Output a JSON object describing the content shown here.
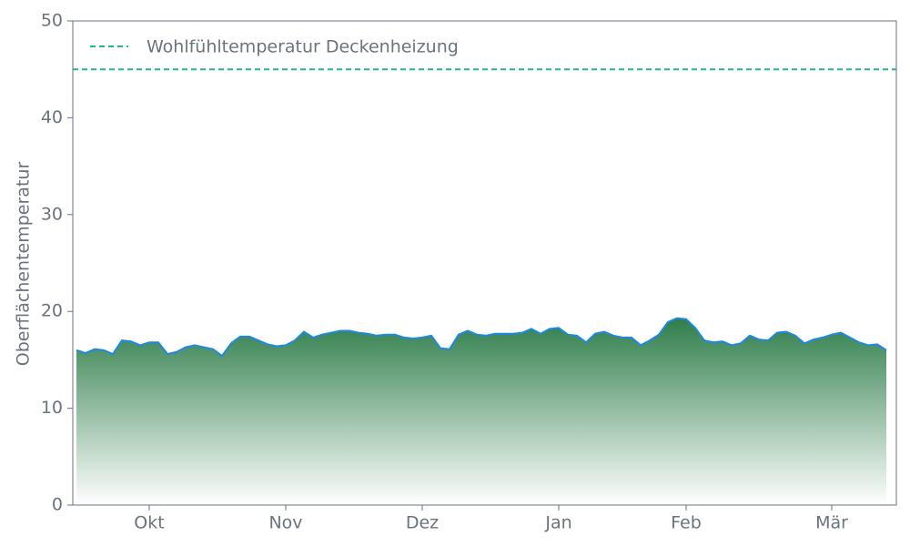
{
  "chart_data": {
    "type": "area",
    "y_label": "Oberflächentemperatur",
    "categories": [
      null,
      null,
      null,
      null,
      null,
      null,
      null,
      null,
      "Okt",
      null,
      null,
      null,
      null,
      null,
      null,
      null,
      null,
      null,
      null,
      null,
      null,
      null,
      null,
      "Nov",
      null,
      null,
      null,
      null,
      null,
      null,
      null,
      null,
      null,
      null,
      null,
      null,
      null,
      null,
      "Dez",
      null,
      null,
      null,
      null,
      null,
      null,
      null,
      null,
      null,
      null,
      null,
      null,
      null,
      null,
      "Jan",
      null,
      null,
      null,
      null,
      null,
      null,
      null,
      null,
      null,
      null,
      null,
      null,
      null,
      "Feb",
      null,
      null,
      null,
      null,
      null,
      null,
      null,
      null,
      null,
      null,
      null,
      null,
      null,
      null,
      null,
      "Mär",
      null,
      null,
      null,
      null,
      null,
      null
    ],
    "series": [
      {
        "color": "#1e88e5",
        "fill_colors": [
          "#2e7d4a",
          "#ffffff"
        ],
        "values": [
          16.0,
          15.7,
          16.1,
          16.0,
          15.6,
          17.0,
          16.9,
          16.5,
          16.8,
          16.8,
          15.6,
          15.8,
          16.3,
          16.5,
          16.3,
          16.1,
          15.4,
          16.7,
          17.4,
          17.4,
          17.0,
          16.6,
          16.4,
          16.5,
          17.0,
          17.9,
          17.3,
          17.6,
          17.8,
          18.0,
          18.0,
          17.8,
          17.7,
          17.5,
          17.6,
          17.6,
          17.3,
          17.2,
          17.3,
          17.5,
          16.2,
          16.1,
          17.6,
          18.0,
          17.6,
          17.5,
          17.7,
          17.7,
          17.7,
          17.8,
          18.2,
          17.7,
          18.2,
          18.3,
          17.6,
          17.5,
          16.8,
          17.7,
          17.9,
          17.5,
          17.3,
          17.3,
          16.5,
          17.0,
          17.6,
          18.9,
          19.3,
          19.2,
          18.3,
          17.0,
          16.8,
          16.9,
          16.5,
          16.7,
          17.5,
          17.1,
          17.0,
          17.8,
          17.9,
          17.5,
          16.7,
          17.1,
          17.3,
          17.6,
          17.8,
          17.3,
          16.8,
          16.5,
          16.6,
          16.0
        ]
      }
    ],
    "reference_line": {
      "name": "Wohlfühltemperatur Deckenheizung",
      "value": 45,
      "color": "#1fb889"
    },
    "ylim": [
      0,
      50
    ],
    "yticks": [
      0,
      10,
      20,
      30,
      40,
      50
    ]
  }
}
